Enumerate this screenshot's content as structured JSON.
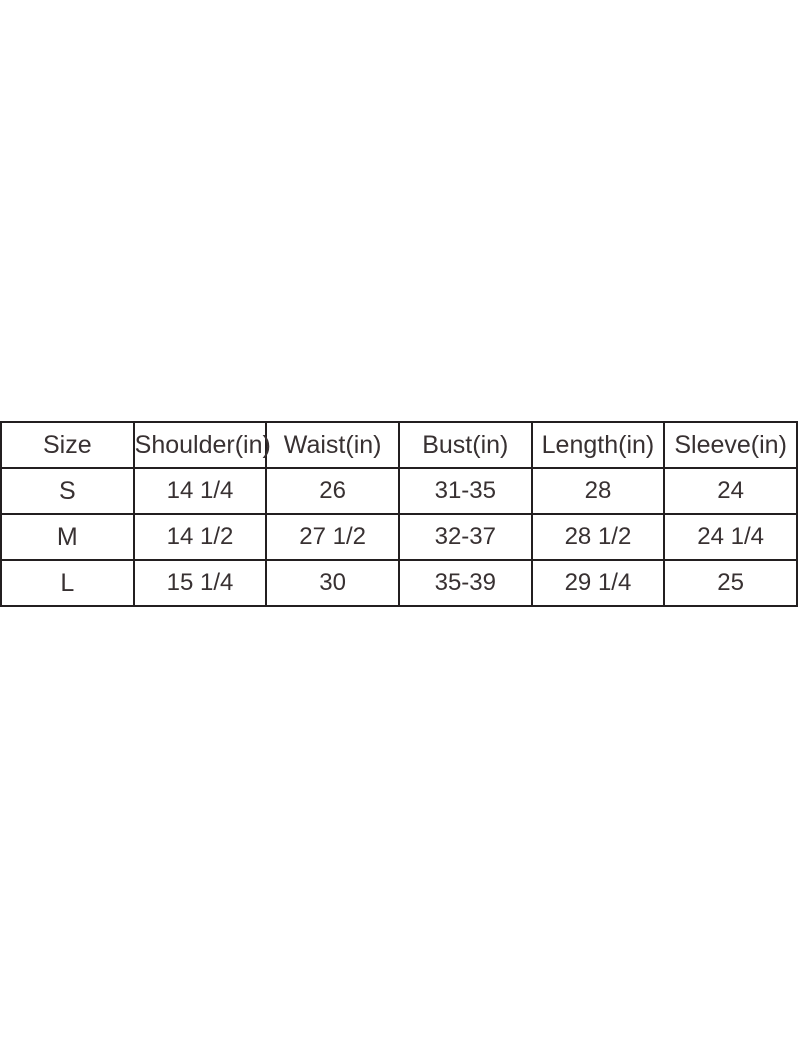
{
  "page": {
    "background": "#ffffff"
  },
  "colors": {
    "text": "#383132",
    "border": "#231f20",
    "background": "#ffffff"
  },
  "chart_data": {
    "type": "table",
    "title": "",
    "columns": [
      "Size",
      "Shoulder(in)",
      "Waist(in)",
      "Bust(in)",
      "Length(in)",
      "Sleeve(in)"
    ],
    "rows": [
      [
        "S",
        "14 1/4",
        "26",
        "31-35",
        "28",
        "24"
      ],
      [
        "M",
        "14 1/2",
        "27 1/2",
        "32-37",
        "28 1/2",
        "24 1/4"
      ],
      [
        "L",
        "15 1/4",
        "30",
        "35-39",
        "29 1/4",
        "25"
      ]
    ]
  }
}
